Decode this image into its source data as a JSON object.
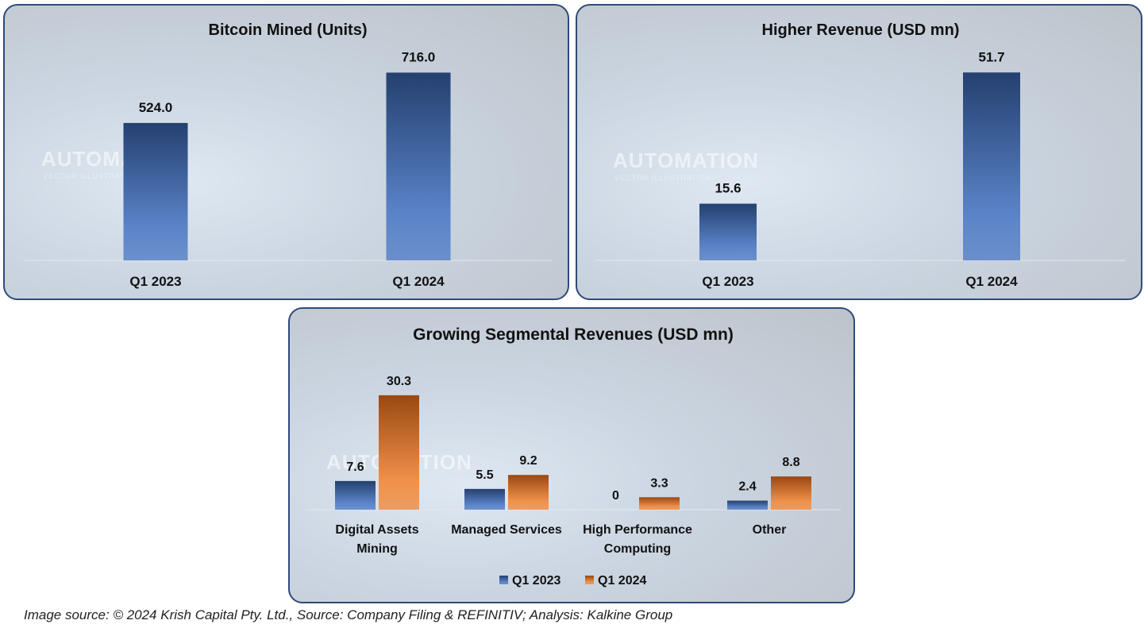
{
  "colors": {
    "q1_2023_dark": "#24406f",
    "q1_2023_light": "#5a83c8",
    "q1_2024_dark": "#9a4812",
    "q1_2024_light": "#f0914a",
    "panel_border": "#2f4a7a"
  },
  "watermark": {
    "title": "AUTOMATION",
    "subtitle": "VECTOR ILLUSTRATION"
  },
  "chart_data": [
    {
      "type": "bar",
      "title": "Bitcoin Mined (Units)",
      "categories": [
        "Q1 2023",
        "Q1 2024"
      ],
      "values": [
        524.0,
        716.0
      ],
      "labels": [
        "524.0",
        "716.0"
      ],
      "xlabel": "",
      "ylabel": "",
      "ylim": [
        0,
        790
      ],
      "grid": false,
      "legend": "none"
    },
    {
      "type": "bar",
      "title": "Higher Revenue (USD mn)",
      "categories": [
        "Q1 2023",
        "Q1 2024"
      ],
      "values": [
        15.6,
        51.7
      ],
      "labels": [
        "15.6",
        "51.7"
      ],
      "xlabel": "",
      "ylabel": "",
      "ylim": [
        0,
        57
      ],
      "grid": false,
      "legend": "none"
    },
    {
      "type": "bar",
      "title": "Growing Segmental Revenues (USD mn)",
      "categories": [
        [
          "Digital Assets",
          "Mining"
        ],
        [
          "Managed Services"
        ],
        [
          "High Performance",
          "Computing"
        ],
        [
          "Other"
        ]
      ],
      "series": [
        {
          "name": "Q1 2023",
          "values": [
            7.6,
            5.5,
            0,
            2.4
          ],
          "labels": [
            "7.6",
            "5.5",
            "0",
            "2.4"
          ]
        },
        {
          "name": "Q1 2024",
          "values": [
            30.3,
            9.2,
            3.3,
            8.8
          ],
          "labels": [
            "30.3",
            "9.2",
            "3.3",
            "8.8"
          ]
        }
      ],
      "xlabel": "",
      "ylabel": "",
      "ylim": [
        0,
        33
      ],
      "grid": false,
      "legend": "bottom"
    }
  ],
  "footer": "Image source: © 2024 Krish Capital Pty. Ltd., Source: Company Filing & REFINITIV; Analysis: Kalkine Group"
}
